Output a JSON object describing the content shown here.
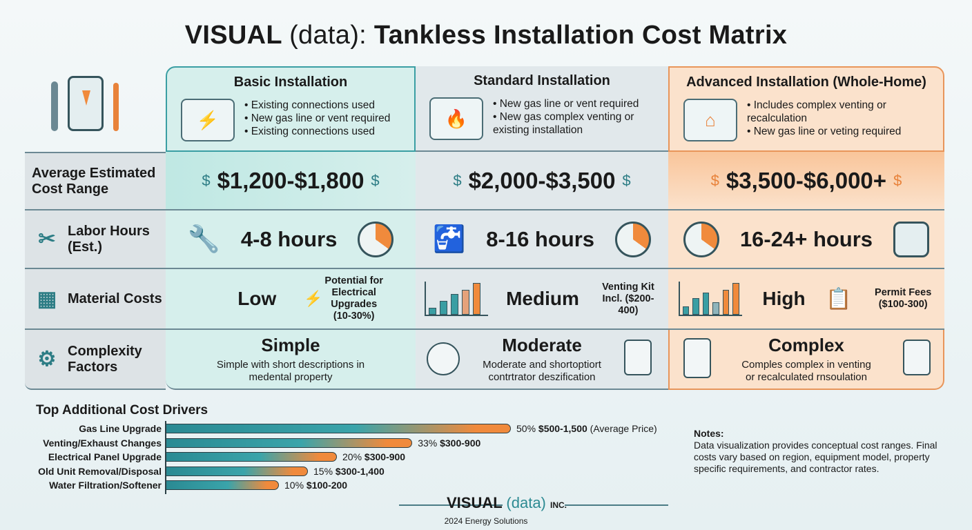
{
  "title": {
    "brand": "VISUAL",
    "paren": "(data):",
    "rest": "Tankless Installation Cost Matrix"
  },
  "columns": [
    {
      "name": "Basic Installation",
      "bullets": [
        "Existing connections used",
        "New gas line or vent required",
        "Existing connections used"
      ],
      "price": "$1,200-$1,800",
      "hours": "4-8 hours",
      "material": "Low",
      "material_note": "Potential for Electrical Upgrades (10-30%)",
      "complexity": "Simple",
      "complexity_desc": "Simple with short descriptions in medental property"
    },
    {
      "name": "Standard Installation",
      "bullets": [
        "New gas line or vent required",
        "New gas complex venting or existing installation"
      ],
      "price": "$2,000-$3,500",
      "hours": "8-16 hours",
      "material": "Medium",
      "material_note": "Venting Kit Incl. ($200-400)",
      "complexity": "Moderate",
      "complexity_desc": "Moderate and shortoptiort contrtrator deszification"
    },
    {
      "name": "Advanced Installation (Whole-Home)",
      "bullets": [
        "Includes complex venting or recalculation",
        "New gas line or veting required"
      ],
      "price": "$3,500-$6,000+",
      "hours": "16-24+ hours",
      "material": "High",
      "material_note": "Permit Fees ($100-300)",
      "complexity": "Complex",
      "complexity_desc": "Comples complex in venting or recalculated rnsoulation"
    }
  ],
  "rows": [
    "Average Estimated Cost Range",
    "Labor Hours (Est.)",
    "Material Costs",
    "Complexity Factors"
  ],
  "chart_data": {
    "type": "bar",
    "title": "Top Additional Cost Drivers",
    "orientation": "horizontal",
    "categories": [
      "Gas Line Upgrade",
      "Venting/Exhaust Changes",
      "Electrical Panel Upgrade",
      "Old Unit Removal/Disposal",
      "Water Filtration/Softener"
    ],
    "values": [
      50,
      33,
      20,
      15,
      10
    ],
    "labels": [
      "50%",
      "33%",
      "20%",
      "15%",
      "10%"
    ],
    "price_labels": [
      "$500-1,500",
      "$300-900",
      "$300-900",
      "$300-1,400",
      "$100-200"
    ],
    "annotation": "(Average Price)"
  },
  "notes": {
    "title": "Notes:",
    "text": "Data visualization provides conceptual cost ranges. Final costs vary based on region, equipment model, property specific requirements, and contractor rates."
  },
  "footer": {
    "brand": "VISUAL",
    "paren": "(data)",
    "inc": "INC.",
    "sub": "2024 Energy Solutions"
  },
  "colors": {
    "teal": "#3a9ea3",
    "orange": "#f08a3c"
  }
}
